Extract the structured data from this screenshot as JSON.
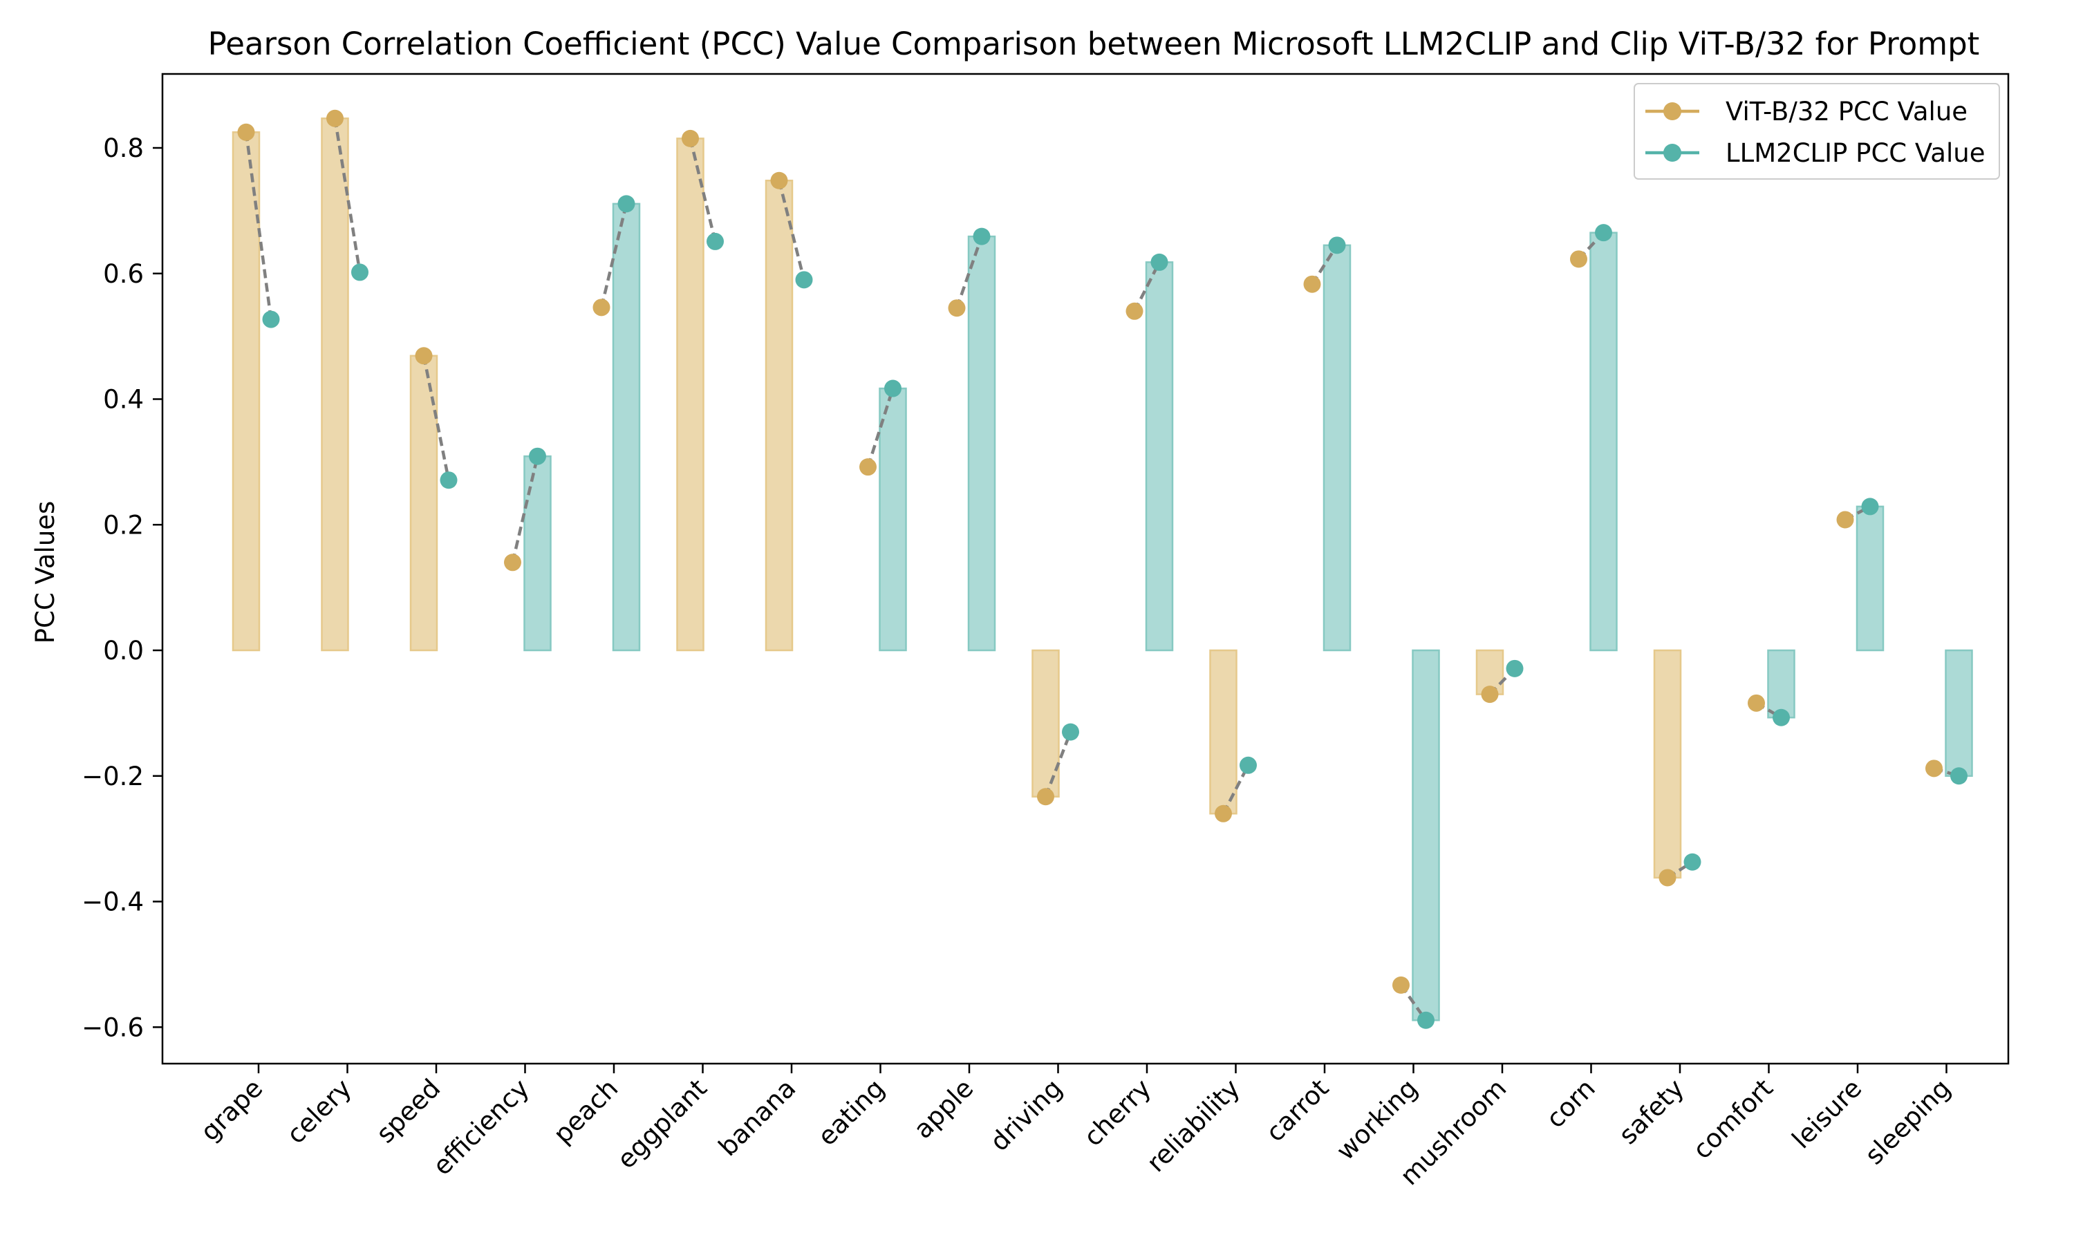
{
  "chart_data": {
    "type": "bar",
    "title": "Pearson Correlation Coefficient (PCC) Value Comparison between Microsoft LLM2CLIP and Clip ViT-B/32 for Prompt",
    "xlabel": "",
    "ylabel": "PCC Values",
    "ylim": [
      -0.66,
      0.92
    ],
    "yticks": [
      -0.6,
      -0.4,
      -0.2,
      0.0,
      0.2,
      0.4,
      0.6,
      0.8
    ],
    "ytick_labels": [
      "−0.6",
      "−0.4",
      "−0.2",
      "0.0",
      "0.2",
      "0.4",
      "0.6",
      "0.8"
    ],
    "grid": false,
    "legend_position": "upper right",
    "categories": [
      "grape",
      "celery",
      "speed",
      "efficiency",
      "peach",
      "eggplant",
      "banana",
      "eating",
      "apple",
      "driving",
      "cherry",
      "reliability",
      "carrot",
      "working",
      "mushroom",
      "corn",
      "safety",
      "comfort",
      "leisure",
      "sleeping"
    ],
    "series": [
      {
        "name": "ViT-B/32 PCC Value",
        "color": "#d4ab5c",
        "marker": "circle",
        "values": [
          0.825,
          0.847,
          0.469,
          0.14,
          0.546,
          0.815,
          0.748,
          0.292,
          0.545,
          -0.233,
          0.54,
          -0.26,
          0.583,
          -0.533,
          -0.07,
          0.623,
          -0.362,
          -0.084,
          0.208,
          -0.188
        ]
      },
      {
        "name": "LLM2CLIP PCC Value",
        "color": "#55b3a9",
        "marker": "circle",
        "values": [
          0.527,
          0.602,
          0.271,
          0.309,
          0.711,
          0.651,
          0.59,
          0.417,
          0.659,
          -0.13,
          0.618,
          -0.183,
          0.645,
          -0.589,
          -0.029,
          0.665,
          -0.337,
          -0.107,
          0.229,
          -0.2
        ]
      }
    ],
    "bars": {
      "description_note": "",
      "higher_magnitude_color_rule": "",
      "fill_colors": {
        "vit": "#ecd8ad",
        "llm": "#acdad6"
      },
      "edge_colors": {
        "vit": "#e6c98b",
        "llm": "#86c9c2"
      }
    },
    "connector": {
      "color": "#808080",
      "style": "dashed"
    }
  }
}
